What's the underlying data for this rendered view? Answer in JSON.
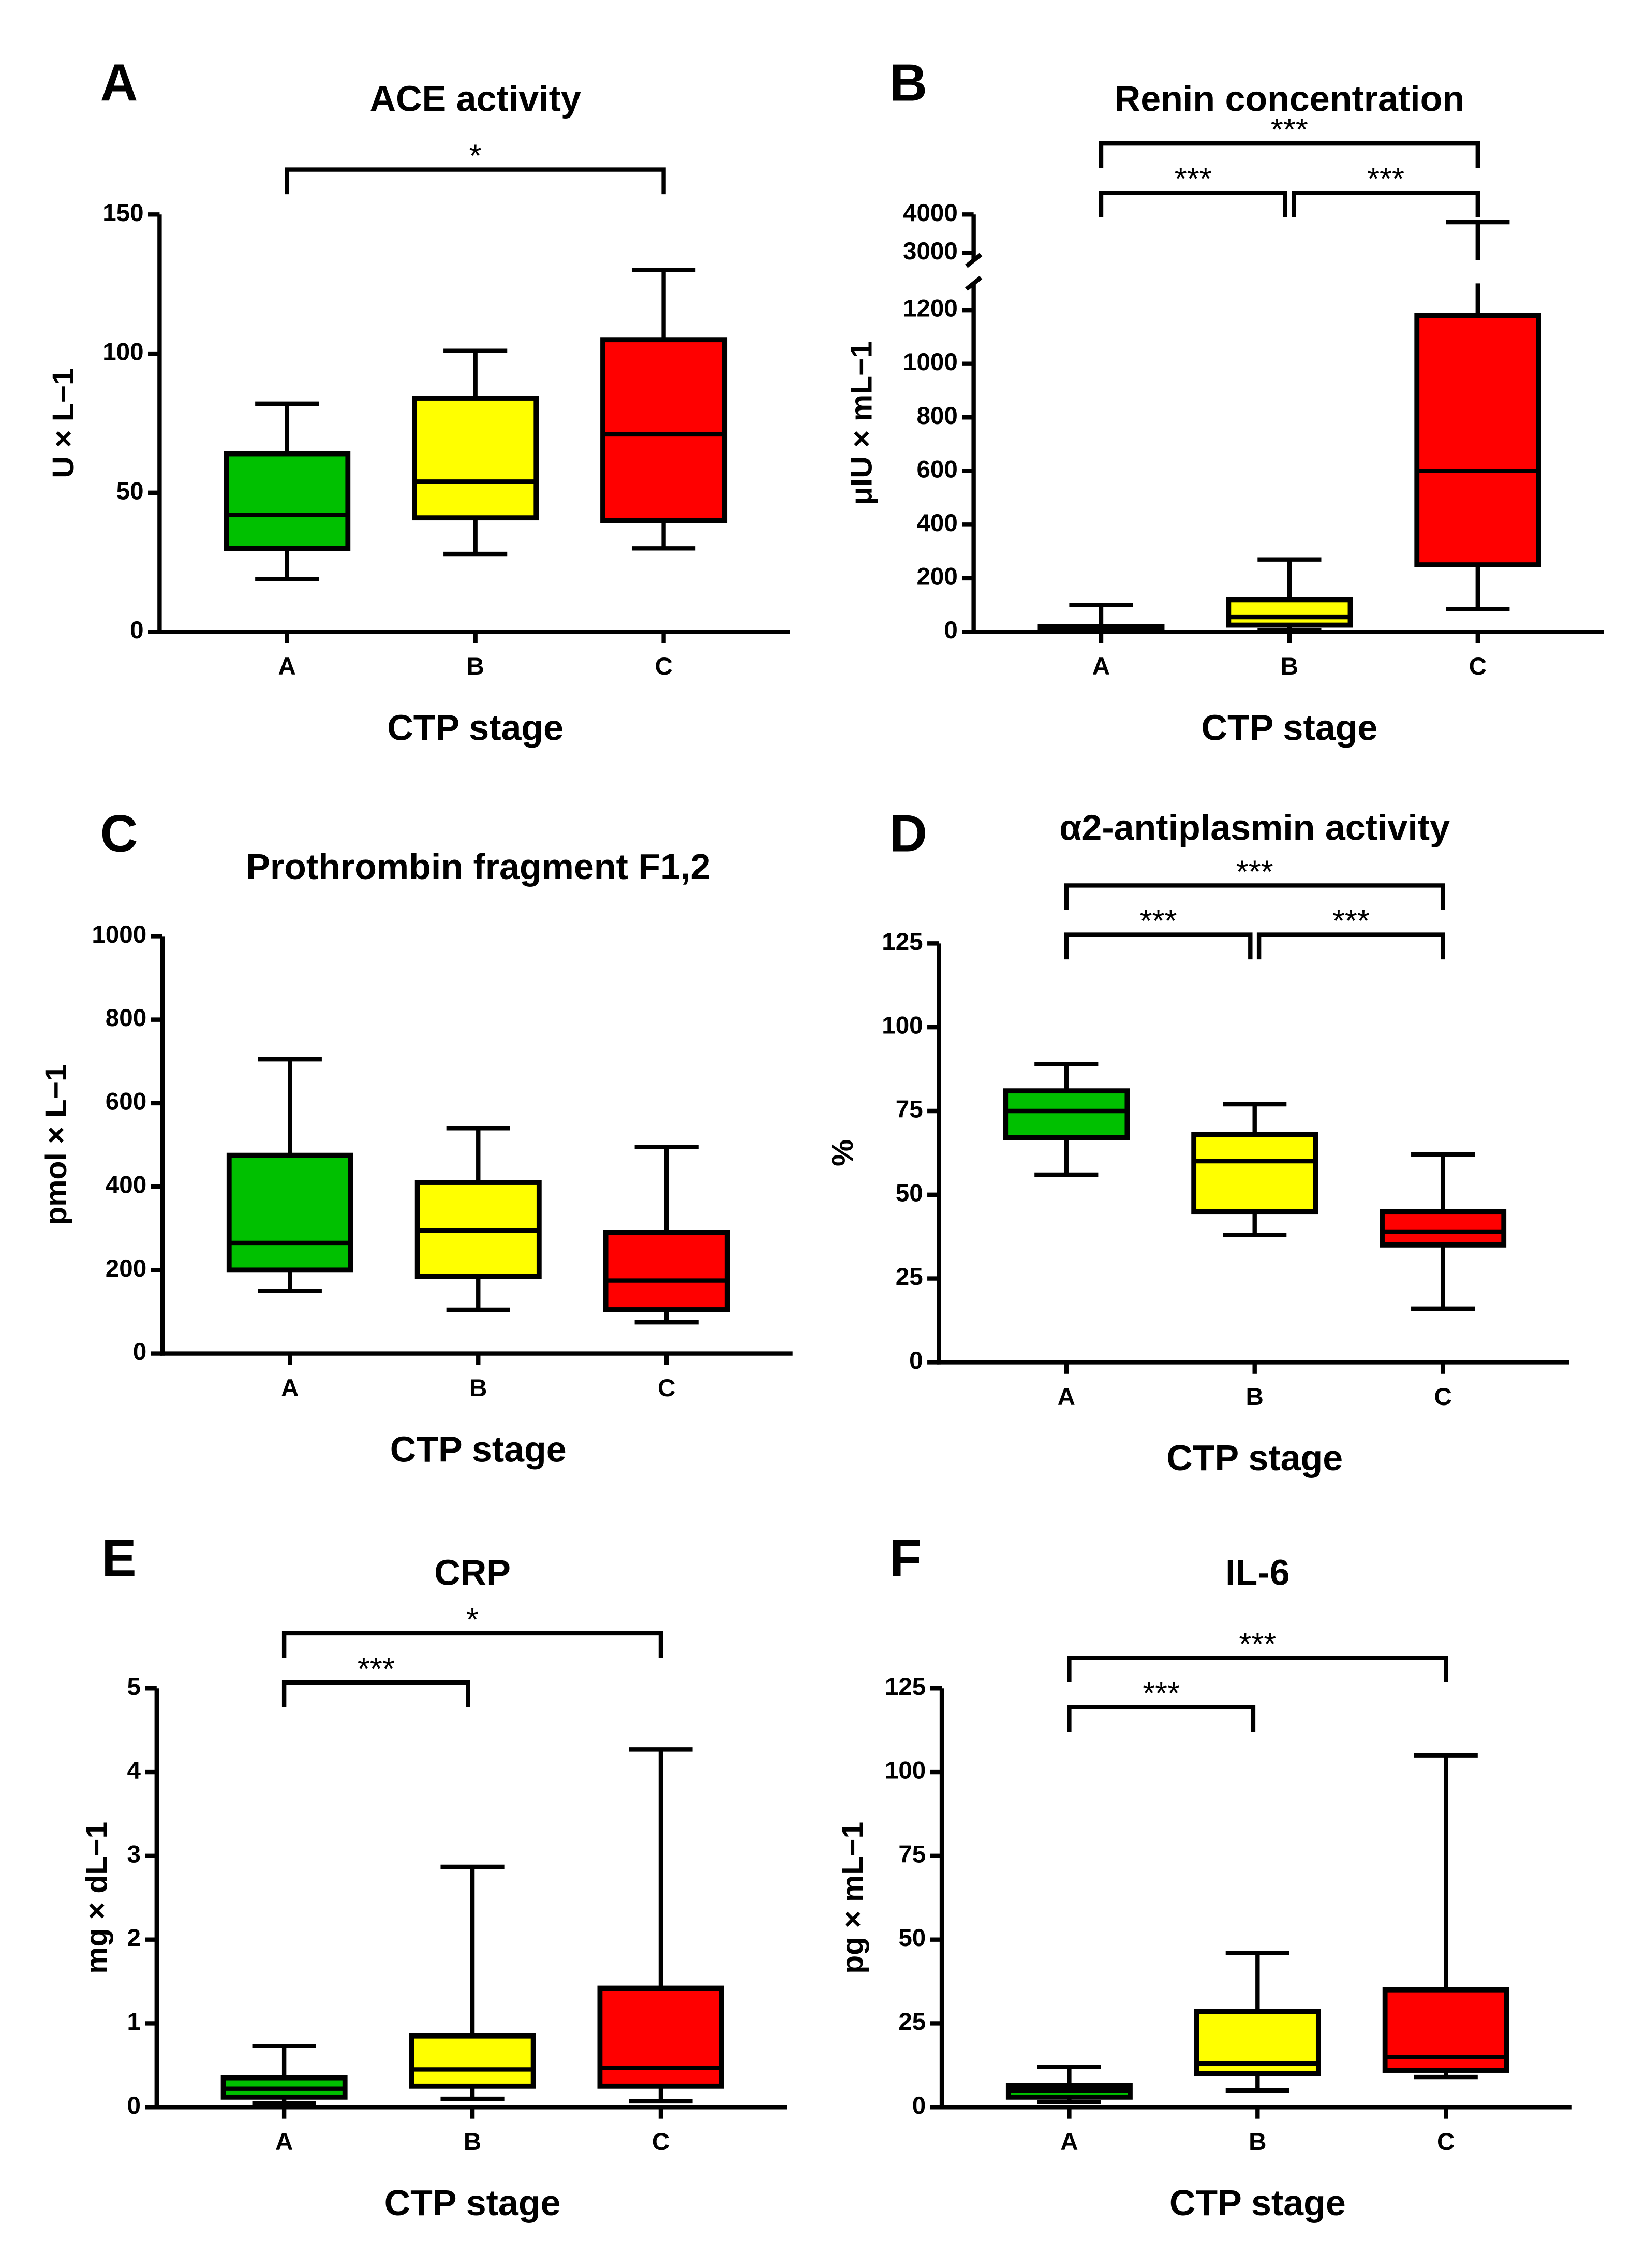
{
  "chart_data": [
    {
      "type": "box",
      "panel": "A",
      "title": "ACE activity",
      "xlabel": "CTP stage",
      "ylabel": "U × L−1",
      "categories": [
        "A",
        "B",
        "C"
      ],
      "colors": [
        "#00c000",
        "#ffff00",
        "#ff0000"
      ],
      "boxes": [
        {
          "min": 19,
          "q1": 30,
          "median": 42,
          "q3": 64,
          "max": 82
        },
        {
          "min": 28,
          "q1": 41,
          "median": 54,
          "q3": 84,
          "max": 101
        },
        {
          "min": 30,
          "q1": 40,
          "median": 71,
          "q3": 105,
          "max": 130
        }
      ],
      "ylim": [
        0,
        150
      ],
      "yticks": [
        0,
        50,
        100,
        150
      ],
      "brackets": [
        {
          "from": "A",
          "to": "C",
          "label": "*"
        }
      ]
    },
    {
      "type": "box",
      "panel": "B",
      "title": "Renin concentration",
      "xlabel": "CTP stage",
      "ylabel": "μIU × mL−1",
      "categories": [
        "A",
        "B",
        "C"
      ],
      "colors": [
        "#00c000",
        "#ffff00",
        "#ff0000"
      ],
      "boxes": [
        {
          "min": 0,
          "q1": 5,
          "median": 10,
          "q3": 20,
          "max": 100
        },
        {
          "min": 5,
          "q1": 25,
          "median": 55,
          "q3": 120,
          "max": 270
        },
        {
          "min": 85,
          "q1": 250,
          "median": 600,
          "q3": 1180,
          "max": 3800
        }
      ],
      "ylim": [
        0,
        4000
      ],
      "ybreak": [
        1300,
        2800
      ],
      "yticks": [
        0,
        200,
        400,
        600,
        800,
        1000,
        1200,
        3000,
        4000
      ],
      "brackets": [
        {
          "from": "A",
          "to": "B",
          "label": "***"
        },
        {
          "from": "B",
          "to": "C",
          "label": "***"
        },
        {
          "from": "A",
          "to": "C",
          "label": "***"
        }
      ]
    },
    {
      "type": "box",
      "panel": "C",
      "title": "Prothrombin fragment F1,2",
      "xlabel": "CTP stage",
      "ylabel": "pmol ×  L−1",
      "categories": [
        "A",
        "B",
        "C"
      ],
      "colors": [
        "#00c000",
        "#ffff00",
        "#ff0000"
      ],
      "boxes": [
        {
          "min": 150,
          "q1": 200,
          "median": 265,
          "q3": 475,
          "max": 705
        },
        {
          "min": 105,
          "q1": 185,
          "median": 295,
          "q3": 410,
          "max": 540
        },
        {
          "min": 75,
          "q1": 105,
          "median": 175,
          "q3": 290,
          "max": 495
        }
      ],
      "ylim": [
        0,
        1000
      ],
      "yticks": [
        0,
        200,
        400,
        600,
        800,
        1000
      ],
      "brackets": []
    },
    {
      "type": "box",
      "panel": "D",
      "title": "α2-antiplasmin activity",
      "xlabel": "CTP stage",
      "ylabel": "%",
      "categories": [
        "A",
        "B",
        "C"
      ],
      "colors": [
        "#00c000",
        "#ffff00",
        "#ff0000"
      ],
      "boxes": [
        {
          "min": 56,
          "q1": 67,
          "median": 75,
          "q3": 81,
          "max": 89
        },
        {
          "min": 38,
          "q1": 45,
          "median": 60,
          "q3": 68,
          "max": 77
        },
        {
          "min": 16,
          "q1": 35,
          "median": 39,
          "q3": 45,
          "max": 62
        }
      ],
      "ylim": [
        0,
        125
      ],
      "yticks": [
        0,
        25,
        50,
        75,
        100,
        125
      ],
      "brackets": [
        {
          "from": "A",
          "to": "B",
          "label": "***"
        },
        {
          "from": "B",
          "to": "C",
          "label": "***"
        },
        {
          "from": "A",
          "to": "C",
          "label": "***"
        }
      ]
    },
    {
      "type": "box",
      "panel": "E",
      "title": "CRP",
      "xlabel": "CTP stage",
      "ylabel": "mg × dL−1",
      "categories": [
        "A",
        "B",
        "C"
      ],
      "colors": [
        "#00c000",
        "#ffff00",
        "#ff0000"
      ],
      "boxes": [
        {
          "min": 0.05,
          "q1": 0.12,
          "median": 0.22,
          "q3": 0.35,
          "max": 0.73
        },
        {
          "min": 0.1,
          "q1": 0.25,
          "median": 0.45,
          "q3": 0.85,
          "max": 2.87
        },
        {
          "min": 0.07,
          "q1": 0.25,
          "median": 0.47,
          "q3": 1.42,
          "max": 4.27
        }
      ],
      "ylim": [
        0,
        5
      ],
      "yticks": [
        0,
        1,
        2,
        3,
        4,
        5
      ],
      "brackets": [
        {
          "from": "A",
          "to": "B",
          "label": "***"
        },
        {
          "from": "A",
          "to": "C",
          "label": "*"
        }
      ]
    },
    {
      "type": "box",
      "panel": "F",
      "title": "IL-6",
      "xlabel": "CTP stage",
      "ylabel": "pg × mL−1",
      "categories": [
        "A",
        "B",
        "C"
      ],
      "colors": [
        "#00c000",
        "#ffff00",
        "#ff0000"
      ],
      "boxes": [
        {
          "min": 1.5,
          "q1": 3,
          "median": 5,
          "q3": 6.5,
          "max": 12
        },
        {
          "min": 5,
          "q1": 10,
          "median": 13,
          "q3": 28.5,
          "max": 46
        },
        {
          "min": 9,
          "q1": 11,
          "median": 15,
          "q3": 35,
          "max": 105
        }
      ],
      "ylim": [
        0,
        125
      ],
      "yticks": [
        0,
        25,
        50,
        75,
        100,
        125
      ],
      "brackets": [
        {
          "from": "A",
          "to": "B",
          "label": "***"
        },
        {
          "from": "A",
          "to": "C",
          "label": "***"
        }
      ]
    }
  ]
}
